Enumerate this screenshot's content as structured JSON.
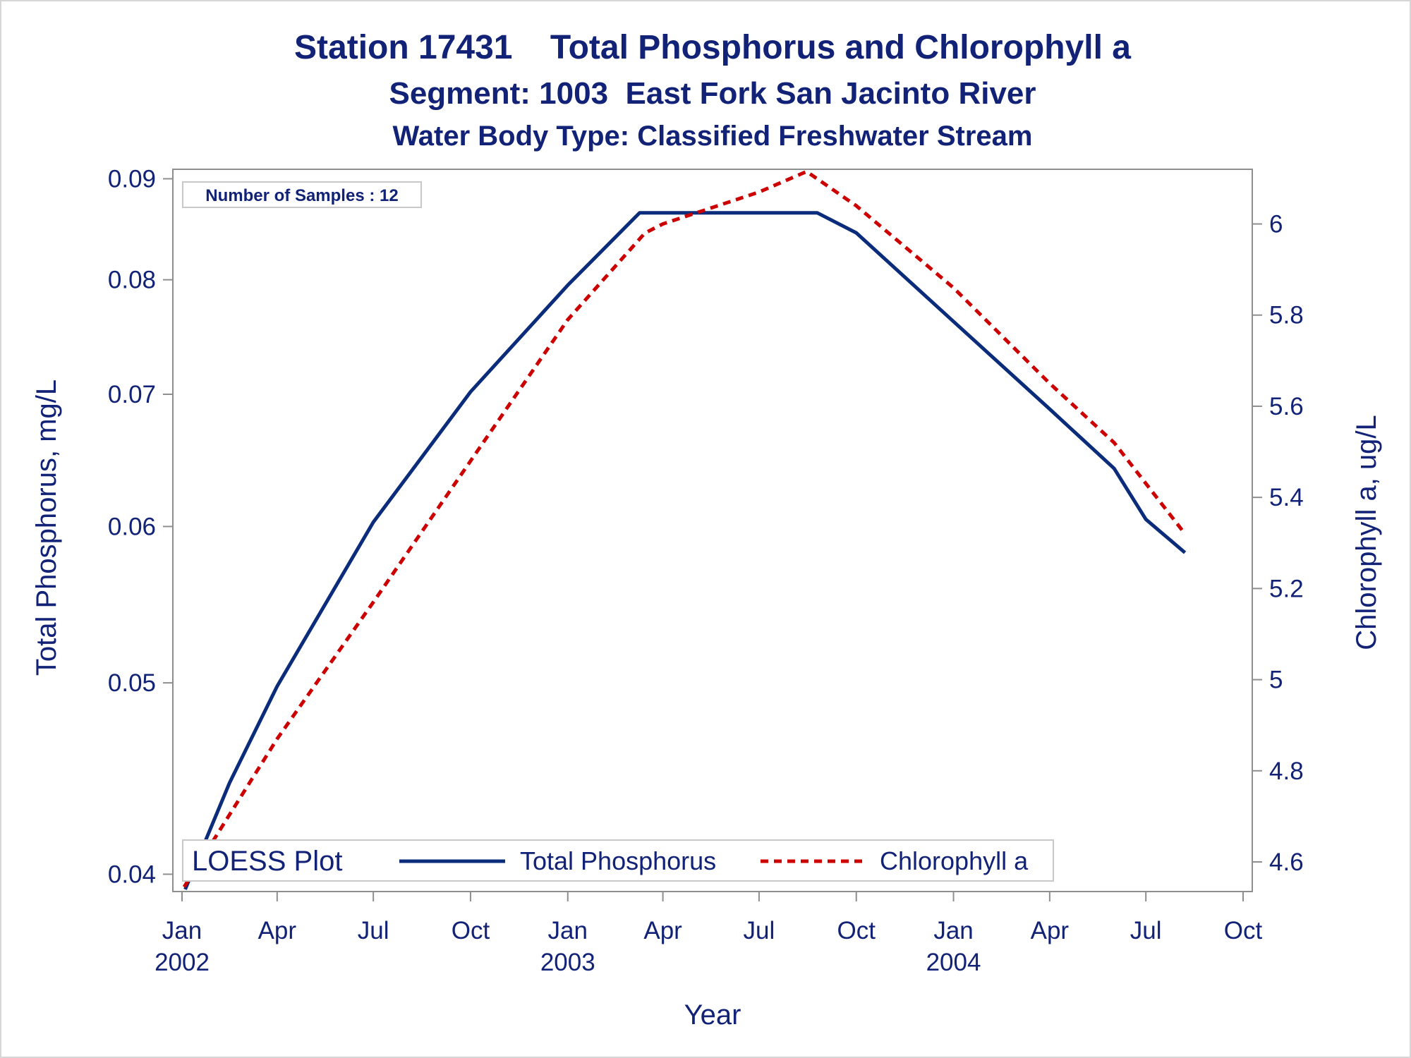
{
  "colors": {
    "text": "#112277",
    "axis": "#8e8e8e",
    "series_phosphorus": "#0b2c7a",
    "series_chlorophyll": "#cc0000",
    "frame": "#d6d6d6"
  },
  "chart_data": {
    "type": "line",
    "title": "Station 17431    Total Phosphorus and Chlorophyll a",
    "subtitle": "Segment: 1003  East Fork San Jacinto River",
    "subtitle2": "Water Body Type: Classified Freshwater Stream",
    "inset": "Number of Samples : 12",
    "xlabel": "Year",
    "ylabel": "Total Phosphorus, mg/L",
    "y2label": "Chlorophyll a, ug/L",
    "y_scale": "log",
    "y2_scale": "linear",
    "grid": false,
    "x_range": [
      "2002-01-01",
      "2004-10-01"
    ],
    "ylim": [
      0.0392,
      0.091
    ],
    "y2lim": [
      4.535,
      6.12
    ],
    "x_ticks": [
      {
        "date": "2002-01-01",
        "label": "Jan",
        "year": "2002"
      },
      {
        "date": "2002-04-01",
        "label": "Apr",
        "year": ""
      },
      {
        "date": "2002-07-01",
        "label": "Jul",
        "year": ""
      },
      {
        "date": "2002-10-01",
        "label": "Oct",
        "year": ""
      },
      {
        "date": "2003-01-01",
        "label": "Jan",
        "year": "2003"
      },
      {
        "date": "2003-04-01",
        "label": "Apr",
        "year": ""
      },
      {
        "date": "2003-07-01",
        "label": "Jul",
        "year": ""
      },
      {
        "date": "2003-10-01",
        "label": "Oct",
        "year": ""
      },
      {
        "date": "2004-01-01",
        "label": "Jan",
        "year": "2004"
      },
      {
        "date": "2004-04-01",
        "label": "Apr",
        "year": ""
      },
      {
        "date": "2004-07-01",
        "label": "Jul",
        "year": ""
      },
      {
        "date": "2004-10-01",
        "label": "Oct",
        "year": ""
      }
    ],
    "y_ticks": [
      0.04,
      0.05,
      0.06,
      0.07,
      0.08,
      0.09
    ],
    "y_tick_labels": [
      "0.04",
      "0.05",
      "0.06",
      "0.07",
      "0.08",
      "0.09"
    ],
    "y2_ticks": [
      4.6,
      4.8,
      5.0,
      5.2,
      5.4,
      5.6,
      5.8,
      6.0
    ],
    "y2_tick_labels": [
      "4.6",
      "4.8",
      "5",
      "5.2",
      "5.4",
      "5.6",
      "5.8",
      "6"
    ],
    "legend": {
      "position": "bottom-left",
      "title": "LOESS Plot",
      "entries": [
        "Total Phosphorus",
        "Chlorophyll a"
      ]
    },
    "series": [
      {
        "name": "Total Phosphorus",
        "axis": "left",
        "style": "solid",
        "points": [
          {
            "x": "2002-01-04",
            "y": 0.0393
          },
          {
            "x": "2002-02-15",
            "y": 0.0445
          },
          {
            "x": "2002-04-01",
            "y": 0.0498
          },
          {
            "x": "2002-07-01",
            "y": 0.0603
          },
          {
            "x": "2002-10-01",
            "y": 0.0702
          },
          {
            "x": "2003-01-01",
            "y": 0.0795
          },
          {
            "x": "2003-03-10",
            "y": 0.0865
          },
          {
            "x": "2003-04-01",
            "y": 0.0865
          },
          {
            "x": "2003-07-01",
            "y": 0.0865
          },
          {
            "x": "2003-08-25",
            "y": 0.0865
          },
          {
            "x": "2003-10-01",
            "y": 0.0845
          },
          {
            "x": "2004-01-01",
            "y": 0.0762
          },
          {
            "x": "2004-04-01",
            "y": 0.0688
          },
          {
            "x": "2004-06-01",
            "y": 0.0642
          },
          {
            "x": "2004-07-01",
            "y": 0.0605
          },
          {
            "x": "2004-08-07",
            "y": 0.0582
          }
        ]
      },
      {
        "name": "Chlorophyll a",
        "axis": "right",
        "style": "dashed",
        "points": [
          {
            "x": "2002-01-03",
            "y": 4.545
          },
          {
            "x": "2002-04-01",
            "y": 4.87
          },
          {
            "x": "2002-07-01",
            "y": 5.17
          },
          {
            "x": "2002-10-01",
            "y": 5.48
          },
          {
            "x": "2003-01-01",
            "y": 5.79
          },
          {
            "x": "2003-03-15",
            "y": 5.98
          },
          {
            "x": "2003-04-01",
            "y": 6.0
          },
          {
            "x": "2003-07-01",
            "y": 6.07
          },
          {
            "x": "2003-08-15",
            "y": 6.115
          },
          {
            "x": "2003-10-01",
            "y": 6.04
          },
          {
            "x": "2004-01-01",
            "y": 5.86
          },
          {
            "x": "2004-04-01",
            "y": 5.65
          },
          {
            "x": "2004-06-01",
            "y": 5.52
          },
          {
            "x": "2004-08-07",
            "y": 5.32
          }
        ]
      }
    ]
  }
}
